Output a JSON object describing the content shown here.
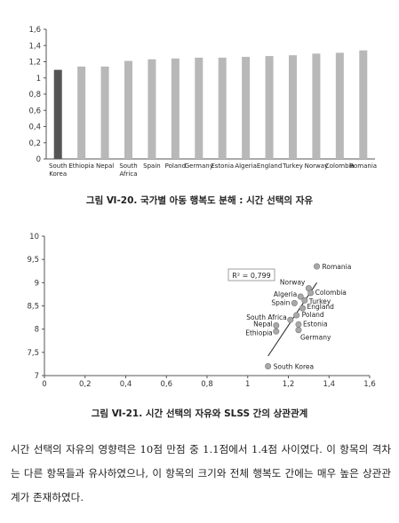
{
  "figure1": {
    "caption": "그림 Ⅵ-20. 국가별 아동 행복도 분해 : 시간 선택의 자유"
  },
  "figure2": {
    "caption": "그림 Ⅵ-21. 시간 선택의 자유와 SLSS 간의 상관관계",
    "r2_label": "R² = 0,799"
  },
  "body_text": "시간 선택의 자유의 영향력은 10점 만점 중 1.1점에서 1.4점 사이였다. 이 항목의 격차는 다른 항목들과 유사하였으나, 이 항목의 크기와 전체 행복도 간에는 매우 높은 상관관계가 존재하였다.",
  "colors": {
    "highlight_bar": "#555555",
    "bar": "#b8b8b8",
    "point": "#a9a9a9",
    "trend": "#222222"
  },
  "chart_data": [
    {
      "type": "bar",
      "categories": [
        "South Korea",
        "Ethiopia",
        "Nepal",
        "South Africa",
        "Spain",
        "Poland",
        "Germany",
        "Estonia",
        "Algeria",
        "England",
        "Turkey",
        "Norway",
        "Colombia",
        "Romania"
      ],
      "category_labels": [
        "South\nKorea",
        "Ethiopia",
        "Nepal",
        "South\nAfrica",
        "Spain",
        "Poland",
        "Germany",
        "Estonia",
        "Algeria",
        "England",
        "Turkey",
        "Norway",
        "Colombia",
        "Romania"
      ],
      "values": [
        1.1,
        1.14,
        1.14,
        1.21,
        1.23,
        1.24,
        1.25,
        1.25,
        1.26,
        1.27,
        1.28,
        1.3,
        1.31,
        1.34
      ],
      "highlight": "South Korea",
      "ylim": [
        0,
        1.6
      ],
      "yticks": [
        "0",
        "0,2",
        "0,4",
        "0,6",
        "0,8",
        "1",
        "1,2",
        "1,4",
        "1,6"
      ],
      "grid": false
    },
    {
      "type": "scatter",
      "xlim": [
        0,
        1.6
      ],
      "ylim": [
        7,
        10
      ],
      "xticks": [
        "0",
        "0,2",
        "0,4",
        "0,6",
        "0,8",
        "1",
        "1,2",
        "1,4",
        "1,6"
      ],
      "yticks": [
        "7",
        "7,5",
        "8",
        "8,5",
        "9",
        "9,5",
        "10"
      ],
      "points": [
        {
          "label": "Romania",
          "x": 1.34,
          "y": 9.35
        },
        {
          "label": "Norway",
          "x": 1.3,
          "y": 8.88
        },
        {
          "label": "Colombia",
          "x": 1.31,
          "y": 8.78
        },
        {
          "label": "Algeria",
          "x": 1.26,
          "y": 8.7
        },
        {
          "label": "Turkey",
          "x": 1.28,
          "y": 8.62
        },
        {
          "label": "Spain",
          "x": 1.23,
          "y": 8.56
        },
        {
          "label": "England",
          "x": 1.27,
          "y": 8.45
        },
        {
          "label": "Poland",
          "x": 1.24,
          "y": 8.3
        },
        {
          "label": "South Africa",
          "x": 1.21,
          "y": 8.2
        },
        {
          "label": "Estonia",
          "x": 1.25,
          "y": 8.1
        },
        {
          "label": "Nepal",
          "x": 1.14,
          "y": 8.08
        },
        {
          "label": "Germany",
          "x": 1.25,
          "y": 7.98
        },
        {
          "label": "Ethiopia",
          "x": 1.14,
          "y": 7.95
        },
        {
          "label": "South Korea",
          "x": 1.1,
          "y": 7.2
        }
      ],
      "trendline": {
        "x": [
          1.1,
          1.34
        ],
        "y": [
          7.42,
          9.0
        ]
      },
      "grid": false
    }
  ]
}
